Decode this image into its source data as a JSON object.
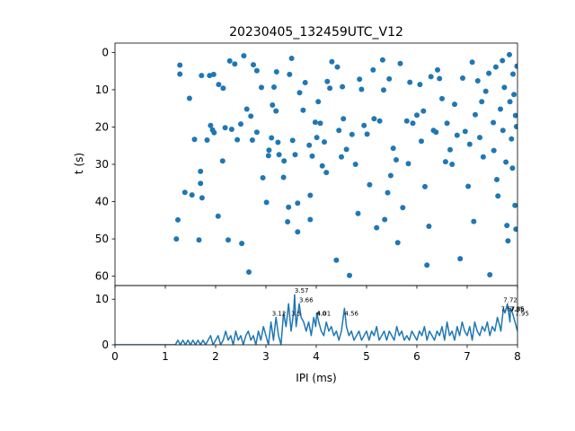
{
  "figure": {
    "title": "20230405_132459UTC_V12",
    "accent_color": "#1f77b4"
  },
  "chart_data": [
    {
      "type": "scatter",
      "title": "20230405_132459UTC_V12",
      "xlabel": "",
      "ylabel": "t (s)",
      "xlim": [
        0,
        8
      ],
      "ylim": [
        62.5,
        -2.5
      ],
      "y_inverted": true,
      "x_ticks_labeled": false,
      "yticks": [
        0,
        10,
        20,
        30,
        40,
        50,
        60
      ],
      "grid": false,
      "color": "#1f77b4",
      "points": [
        [
          1.22,
          50.0
        ],
        [
          1.25,
          44.9
        ],
        [
          1.29,
          3.4
        ],
        [
          1.29,
          5.8
        ],
        [
          1.39,
          37.5
        ],
        [
          1.48,
          12.3
        ],
        [
          1.53,
          38.2
        ],
        [
          1.58,
          23.3
        ],
        [
          1.67,
          50.3
        ],
        [
          1.7,
          35.1
        ],
        [
          1.7,
          31.9
        ],
        [
          1.72,
          6.2
        ],
        [
          1.73,
          39.0
        ],
        [
          1.83,
          23.5
        ],
        [
          1.88,
          6.2
        ],
        [
          1.9,
          19.6
        ],
        [
          1.94,
          20.8
        ],
        [
          1.96,
          5.9
        ],
        [
          1.97,
          21.5
        ],
        [
          2.05,
          43.9
        ],
        [
          2.06,
          8.6
        ],
        [
          2.14,
          29.1
        ],
        [
          2.15,
          9.6
        ],
        [
          2.19,
          20.2
        ],
        [
          2.25,
          50.3
        ],
        [
          2.28,
          2.3
        ],
        [
          2.32,
          20.6
        ],
        [
          2.38,
          3.1
        ],
        [
          2.43,
          23.4
        ],
        [
          2.5,
          19.2
        ],
        [
          2.52,
          51.2
        ],
        [
          2.56,
          0.9
        ],
        [
          2.62,
          15.2
        ],
        [
          2.66,
          58.9
        ],
        [
          2.7,
          17.1
        ],
        [
          2.73,
          23.5
        ],
        [
          2.75,
          3.3
        ],
        [
          2.82,
          4.9
        ],
        [
          2.82,
          21.4
        ],
        [
          2.91,
          9.4
        ],
        [
          2.94,
          33.6
        ],
        [
          3.01,
          40.2
        ],
        [
          3.05,
          27.7
        ],
        [
          3.06,
          26.2
        ],
        [
          3.11,
          22.9
        ],
        [
          3.13,
          14.1
        ],
        [
          3.16,
          9.3
        ],
        [
          3.2,
          15.7
        ],
        [
          3.21,
          5.2
        ],
        [
          3.24,
          24.1
        ],
        [
          3.26,
          27.4
        ],
        [
          3.35,
          33.5
        ],
        [
          3.36,
          29.1
        ],
        [
          3.43,
          45.4
        ],
        [
          3.45,
          41.5
        ],
        [
          3.47,
          5.9
        ],
        [
          3.51,
          1.6
        ],
        [
          3.53,
          23.6
        ],
        [
          3.58,
          27.4
        ],
        [
          3.63,
          40.4
        ],
        [
          3.63,
          48.1
        ],
        [
          3.67,
          10.8
        ],
        [
          3.74,
          15.5
        ],
        [
          3.78,
          8.1
        ],
        [
          3.86,
          24.9
        ],
        [
          3.88,
          38.3
        ],
        [
          3.88,
          44.8
        ],
        [
          3.92,
          27.8
        ],
        [
          3.98,
          18.7
        ],
        [
          4.01,
          22.8
        ],
        [
          4.04,
          13.2
        ],
        [
          4.08,
          19.0
        ],
        [
          4.12,
          30.4
        ],
        [
          4.16,
          24.0
        ],
        [
          4.2,
          32.2
        ],
        [
          4.22,
          7.8
        ],
        [
          4.27,
          9.6
        ],
        [
          4.31,
          2.5
        ],
        [
          4.4,
          55.7
        ],
        [
          4.42,
          3.9
        ],
        [
          4.45,
          20.9
        ],
        [
          4.5,
          28.0
        ],
        [
          4.52,
          9.2
        ],
        [
          4.54,
          17.8
        ],
        [
          4.6,
          26.0
        ],
        [
          4.66,
          59.8
        ],
        [
          4.71,
          22.0
        ],
        [
          4.78,
          30.0
        ],
        [
          4.83,
          43.2
        ],
        [
          4.86,
          7.2
        ],
        [
          4.9,
          9.9
        ],
        [
          4.95,
          19.6
        ],
        [
          5.01,
          21.9
        ],
        [
          5.06,
          35.5
        ],
        [
          5.13,
          4.7
        ],
        [
          5.15,
          17.8
        ],
        [
          5.2,
          47.0
        ],
        [
          5.26,
          18.4
        ],
        [
          5.32,
          2.0
        ],
        [
          5.34,
          10.1
        ],
        [
          5.36,
          44.8
        ],
        [
          5.42,
          37.6
        ],
        [
          5.45,
          7.1
        ],
        [
          5.48,
          33.0
        ],
        [
          5.53,
          25.7
        ],
        [
          5.59,
          28.8
        ],
        [
          5.62,
          51.0
        ],
        [
          5.67,
          3.0
        ],
        [
          5.72,
          41.6
        ],
        [
          5.8,
          18.4
        ],
        [
          5.83,
          29.8
        ],
        [
          5.86,
          8.0
        ],
        [
          5.92,
          19.0
        ],
        [
          6.0,
          16.8
        ],
        [
          6.06,
          8.6
        ],
        [
          6.09,
          23.8
        ],
        [
          6.13,
          15.7
        ],
        [
          6.16,
          36.0
        ],
        [
          6.2,
          57.0
        ],
        [
          6.24,
          46.6
        ],
        [
          6.28,
          6.5
        ],
        [
          6.33,
          20.9
        ],
        [
          6.38,
          21.4
        ],
        [
          6.41,
          4.7
        ],
        [
          6.45,
          7.0
        ],
        [
          6.5,
          12.4
        ],
        [
          6.57,
          29.3
        ],
        [
          6.6,
          19.0
        ],
        [
          6.66,
          26.1
        ],
        [
          6.7,
          30.0
        ],
        [
          6.75,
          13.9
        ],
        [
          6.8,
          22.2
        ],
        [
          6.86,
          55.3
        ],
        [
          6.91,
          6.9
        ],
        [
          6.96,
          21.2
        ],
        [
          7.02,
          35.9
        ],
        [
          7.05,
          24.6
        ],
        [
          7.1,
          2.6
        ],
        [
          7.13,
          45.3
        ],
        [
          7.16,
          16.7
        ],
        [
          7.21,
          7.6
        ],
        [
          7.25,
          22.8
        ],
        [
          7.29,
          13.2
        ],
        [
          7.32,
          28.0
        ],
        [
          7.37,
          10.4
        ],
        [
          7.43,
          5.6
        ],
        [
          7.45,
          59.6
        ],
        [
          7.52,
          18.8
        ],
        [
          7.53,
          26.3
        ],
        [
          7.57,
          3.9
        ],
        [
          7.59,
          34.1
        ],
        [
          7.61,
          38.5
        ],
        [
          7.66,
          15.2
        ],
        [
          7.7,
          2.2
        ],
        [
          7.71,
          20.9
        ],
        [
          7.74,
          9.4
        ],
        [
          7.77,
          29.4
        ],
        [
          7.79,
          46.4
        ],
        [
          7.81,
          50.5
        ],
        [
          7.84,
          0.6
        ],
        [
          7.85,
          13.2
        ],
        [
          7.88,
          23.2
        ],
        [
          7.9,
          31.0
        ],
        [
          7.91,
          5.8
        ],
        [
          7.93,
          11.3
        ],
        [
          7.95,
          41.0
        ],
        [
          7.96,
          16.9
        ],
        [
          7.97,
          47.4
        ],
        [
          7.98,
          19.9
        ],
        [
          7.99,
          3.7
        ]
      ]
    },
    {
      "type": "line",
      "title": "",
      "xlabel": "IPI (ms)",
      "ylabel": "",
      "xlim": [
        0,
        8
      ],
      "ylim": [
        0,
        13
      ],
      "xticks": [
        0,
        1,
        2,
        3,
        4,
        5,
        6,
        7,
        8
      ],
      "yticks": [
        0,
        10
      ],
      "grid": false,
      "color": "#1f77b4",
      "x": [
        0.0,
        0.1,
        0.2,
        0.3,
        0.4,
        0.5,
        0.6,
        0.7,
        0.8,
        0.9,
        1.0,
        1.1,
        1.2,
        1.25,
        1.3,
        1.35,
        1.4,
        1.45,
        1.5,
        1.55,
        1.6,
        1.65,
        1.7,
        1.75,
        1.8,
        1.85,
        1.9,
        1.95,
        2.0,
        2.05,
        2.1,
        2.15,
        2.2,
        2.25,
        2.3,
        2.35,
        2.4,
        2.45,
        2.5,
        2.55,
        2.6,
        2.65,
        2.7,
        2.75,
        2.8,
        2.85,
        2.9,
        2.95,
        3.0,
        3.05,
        3.1,
        3.15,
        3.2,
        3.25,
        3.3,
        3.35,
        3.4,
        3.45,
        3.5,
        3.55,
        3.57,
        3.6,
        3.66,
        3.7,
        3.75,
        3.8,
        3.85,
        3.9,
        3.95,
        3.99,
        4.01,
        4.05,
        4.1,
        4.15,
        4.2,
        4.25,
        4.3,
        4.35,
        4.4,
        4.45,
        4.5,
        4.56,
        4.6,
        4.65,
        4.7,
        4.75,
        4.8,
        4.85,
        4.9,
        4.95,
        5.0,
        5.05,
        5.1,
        5.15,
        5.2,
        5.25,
        5.3,
        5.35,
        5.4,
        5.45,
        5.5,
        5.55,
        5.6,
        5.65,
        5.7,
        5.75,
        5.8,
        5.85,
        5.9,
        5.95,
        6.0,
        6.05,
        6.1,
        6.15,
        6.2,
        6.25,
        6.3,
        6.35,
        6.4,
        6.45,
        6.5,
        6.55,
        6.6,
        6.65,
        6.7,
        6.75,
        6.8,
        6.85,
        6.9,
        6.95,
        7.0,
        7.05,
        7.1,
        7.15,
        7.2,
        7.25,
        7.3,
        7.35,
        7.4,
        7.45,
        7.5,
        7.55,
        7.6,
        7.65,
        7.67,
        7.72,
        7.75,
        7.8,
        7.85,
        7.86,
        7.9,
        7.95,
        8.0
      ],
      "y": [
        0,
        0,
        0,
        0,
        0,
        0,
        0,
        0,
        0,
        0,
        0,
        0,
        0,
        1,
        0,
        1,
        0,
        1,
        0,
        1,
        0,
        1,
        0,
        1,
        0,
        1,
        2,
        0,
        1,
        2,
        0,
        1,
        3,
        1,
        2,
        0,
        3,
        1,
        2,
        0,
        2,
        3,
        1,
        2,
        0,
        3,
        1,
        4,
        2,
        0,
        5,
        1,
        6,
        2,
        0,
        7,
        4,
        9,
        3,
        7,
        11,
        4,
        9,
        6,
        5,
        3,
        5,
        2,
        6,
        4,
        7,
        5,
        3,
        2,
        5,
        3,
        4,
        2,
        3,
        1,
        3,
        8,
        4,
        2,
        3,
        1,
        2,
        3,
        1,
        2,
        3,
        1,
        3,
        2,
        4,
        1,
        2,
        3,
        1,
        3,
        2,
        1,
        4,
        2,
        3,
        1,
        2,
        1,
        3,
        2,
        1,
        3,
        2,
        4,
        1,
        3,
        2,
        1,
        3,
        2,
        4,
        1,
        5,
        2,
        3,
        1,
        4,
        2,
        5,
        3,
        2,
        4,
        1,
        5,
        3,
        2,
        4,
        3,
        5,
        2,
        4,
        3,
        6,
        4,
        3,
        8,
        7,
        9,
        5,
        8,
        7,
        5,
        3
      ]
    }
  ],
  "peak_labels": [
    {
      "x": 3.12,
      "y": 6.0,
      "text": "3.12"
    },
    {
      "x": 3.5,
      "y": 6.0,
      "text": "3.5"
    },
    {
      "x": 3.57,
      "y": 11.0,
      "text": "3.57"
    },
    {
      "x": 3.66,
      "y": 9.0,
      "text": "3.66"
    },
    {
      "x": 4.0,
      "y": 6.0,
      "text": "4.0"
    },
    {
      "x": 4.01,
      "y": 6.0,
      "text": "4.01"
    },
    {
      "x": 4.56,
      "y": 6.0,
      "text": "4.56"
    },
    {
      "x": 7.67,
      "y": 7.0,
      "text": "7.67"
    },
    {
      "x": 7.72,
      "y": 9.0,
      "text": "7.72"
    },
    {
      "x": 7.85,
      "y": 7.0,
      "text": "7.85"
    },
    {
      "x": 7.86,
      "y": 7.0,
      "text": "7.86"
    },
    {
      "x": 7.95,
      "y": 6.0,
      "text": "7.95"
    }
  ]
}
